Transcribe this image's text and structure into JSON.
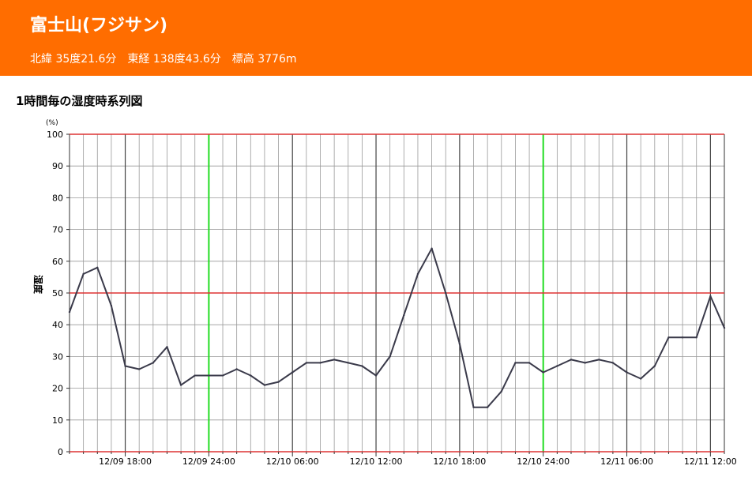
{
  "page": {
    "station_name": "富士山(フジサン)",
    "location": "北緯 35度21.6分　東経 138度43.6分　標高 3776m",
    "chart_heading": "1時間毎の湿度時系列図"
  },
  "colors": {
    "header_bg": "#ff6d00",
    "line": "#3a3a4a",
    "hour_grid": "#9a9a9a",
    "six_hour_grid": "#444444",
    "midnight_line": "#22dd22",
    "ref_line": "#dd3333",
    "h_grid": "#999999"
  },
  "chart_data": {
    "type": "line",
    "unit": "(%)",
    "ylabel": "湿度",
    "ylim": [
      0,
      100
    ],
    "yticks": [
      0,
      10,
      20,
      30,
      40,
      50,
      60,
      70,
      80,
      90,
      100
    ],
    "reference_lines": [
      0,
      50,
      100
    ],
    "x_start": "12/09 14:00",
    "x_end": "12/11 13:00",
    "x_tick_labels": [
      "12/09 18:00",
      "12/09 24:00",
      "12/10 06:00",
      "12/10 12:00",
      "12/10 18:00",
      "12/10 24:00",
      "12/11 06:00",
      "12/11 12:00"
    ],
    "x": [
      "12/09 14:00",
      "12/09 15:00",
      "12/09 16:00",
      "12/09 17:00",
      "12/09 18:00",
      "12/09 19:00",
      "12/09 20:00",
      "12/09 21:00",
      "12/09 22:00",
      "12/09 23:00",
      "12/09 24:00",
      "12/10 01:00",
      "12/10 02:00",
      "12/10 03:00",
      "12/10 04:00",
      "12/10 05:00",
      "12/10 06:00",
      "12/10 07:00",
      "12/10 08:00",
      "12/10 09:00",
      "12/10 10:00",
      "12/10 11:00",
      "12/10 12:00",
      "12/10 13:00",
      "12/10 14:00",
      "12/10 15:00",
      "12/10 16:00",
      "12/10 17:00",
      "12/10 18:00",
      "12/10 19:00",
      "12/10 20:00",
      "12/10 21:00",
      "12/10 22:00",
      "12/10 23:00",
      "12/10 24:00",
      "12/11 01:00",
      "12/11 02:00",
      "12/11 03:00",
      "12/11 04:00",
      "12/11 05:00",
      "12/11 06:00",
      "12/11 07:00",
      "12/11 08:00",
      "12/11 09:00",
      "12/11 10:00",
      "12/11 11:00",
      "12/11 12:00",
      "12/11 13:00"
    ],
    "series": [
      {
        "values": [
          44,
          56,
          58,
          46,
          27,
          26,
          28,
          33,
          21,
          24,
          24,
          24,
          26,
          24,
          21,
          22,
          25,
          28,
          28,
          29,
          28,
          27,
          24,
          30,
          43,
          56,
          64,
          50,
          34,
          14,
          14,
          19,
          28,
          28,
          25,
          27,
          29,
          28,
          29,
          28,
          25,
          23,
          27,
          36,
          36,
          36,
          49,
          39
        ]
      }
    ]
  }
}
